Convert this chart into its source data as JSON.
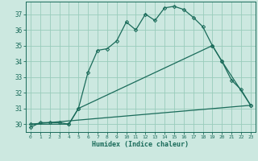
{
  "title": "",
  "xlabel": "Humidex (Indice chaleur)",
  "background_color": "#cce8e0",
  "line_color": "#1a6b5a",
  "grid_color": "#99ccbb",
  "xlim": [
    -0.5,
    23.5
  ],
  "ylim": [
    29.5,
    37.8
  ],
  "yticks": [
    30,
    31,
    32,
    33,
    34,
    35,
    36,
    37
  ],
  "xticks": [
    0,
    1,
    2,
    3,
    4,
    5,
    6,
    7,
    8,
    9,
    10,
    11,
    12,
    13,
    14,
    15,
    16,
    17,
    18,
    19,
    20,
    21,
    22,
    23
  ],
  "series1_x": [
    0,
    1,
    2,
    3,
    4,
    5,
    6,
    7,
    8,
    9,
    10,
    11,
    12,
    13,
    14,
    15,
    16,
    17,
    18,
    19,
    20,
    21,
    22,
    23
  ],
  "series1_y": [
    29.8,
    30.1,
    30.1,
    30.1,
    30.0,
    31.0,
    33.3,
    34.7,
    34.8,
    35.3,
    36.5,
    36.0,
    37.0,
    36.6,
    37.4,
    37.5,
    37.3,
    36.8,
    36.2,
    35.0,
    34.0,
    32.8,
    32.2,
    31.2
  ],
  "series2_x": [
    0,
    4,
    5,
    19,
    20,
    23
  ],
  "series2_y": [
    30.0,
    30.0,
    31.0,
    35.0,
    34.0,
    31.2
  ],
  "series3_x": [
    0,
    23
  ],
  "series3_y": [
    30.0,
    31.2
  ]
}
